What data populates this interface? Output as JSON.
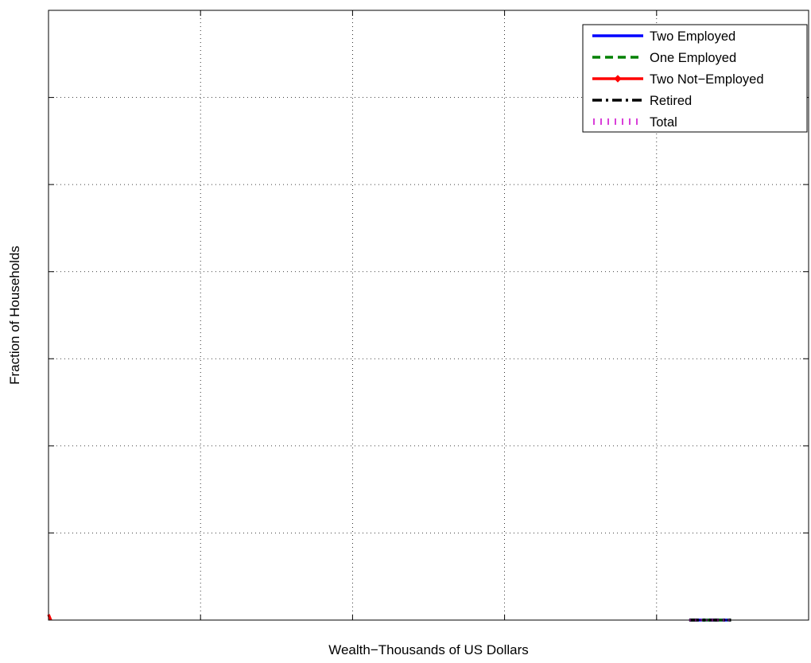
{
  "chart_data": {
    "type": "line",
    "title": "",
    "xlabel": "Wealth−Thousands of US Dollars",
    "ylabel": "Fraction of Households",
    "xlim": [
      0,
      1
    ],
    "ylim": [
      0,
      1
    ],
    "x_ticks": [
      0.2,
      0.4,
      0.6,
      0.8
    ],
    "y_ticks": [
      0.1429,
      0.2857,
      0.4286,
      0.5714,
      0.7143,
      0.8571
    ],
    "grid": true,
    "legend_position": "top-right",
    "series": [
      {
        "name": "Two Employed",
        "color": "#0000ff",
        "style": "solid",
        "marker": "none",
        "x": [
          0.843,
          0.898
        ],
        "y": [
          0,
          0
        ]
      },
      {
        "name": "One Employed",
        "color": "#008000",
        "style": "dashed",
        "marker": "none",
        "x": [
          0.843,
          0.898
        ],
        "y": [
          0,
          0
        ]
      },
      {
        "name": "Two Not−Employed",
        "color": "#ff0000",
        "style": "solid",
        "marker": "diamond",
        "x": [
          0,
          0.003
        ],
        "y": [
          0.009,
          0
        ]
      },
      {
        "name": "Retired",
        "color": "#000000",
        "style": "dashdot",
        "marker": "none",
        "x": [
          0.843,
          0.898
        ],
        "y": [
          0,
          0
        ]
      },
      {
        "name": "Total",
        "color": "#cc00cc",
        "style": "dotted",
        "marker": "none",
        "x": [
          0.843,
          0.898
        ],
        "y": [
          0,
          0
        ]
      }
    ]
  }
}
